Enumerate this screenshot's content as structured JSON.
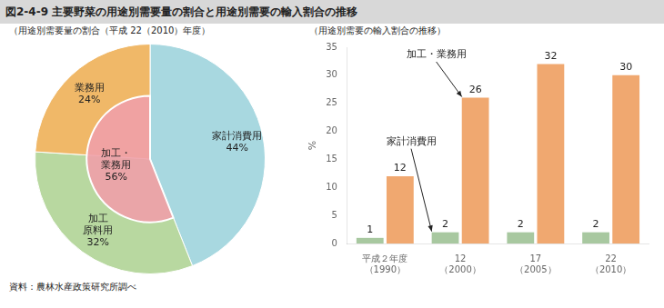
{
  "title": "図2-4-9   主要野菜の用途別需要量の割合と用途別需要の輸入割合の推移",
  "source": "資料：農林水産政策研究所調べ",
  "chart_data": [
    {
      "type": "pie",
      "subtitle": "（用途別需要量の割合（平成 22（2010）年度）",
      "categories": [
        "家計消費用",
        "加工\n原料用",
        "業務用"
      ],
      "values": [
        44,
        32,
        24
      ],
      "value_labels": [
        "44%",
        "32%",
        "24%"
      ],
      "colors": [
        "#a8d8e0",
        "#b8d8a0",
        "#f0b868"
      ],
      "data_labels": true,
      "annotations": [
        {
          "text": "加工・\n業務用",
          "value": 56,
          "value_label": "56%",
          "categories": [
            "加工\n原料用",
            "業務用"
          ],
          "color": "#f0a0a8"
        }
      ]
    },
    {
      "type": "bar",
      "subtitle": "（用途別需要の輸入割合の推移）",
      "categories": [
        "平成２年度\n（1990）",
        "12\n（2000）",
        "17\n（2005）",
        "22\n（2010）"
      ],
      "series": [
        {
          "color": "#a8c8a0",
          "values": [
            1,
            2,
            2,
            2
          ]
        },
        {
          "color": "#f0a870",
          "values": [
            12,
            26,
            32,
            30
          ]
        }
      ],
      "ylabel": "%",
      "ylim": [
        0,
        35
      ],
      "yticks": [
        0,
        5,
        10,
        15,
        20,
        25,
        30,
        35
      ],
      "grid": false,
      "data_labels": true,
      "annotations": [
        {
          "text": "家計消費用",
          "series": 0,
          "category": "12\n（2000）"
        },
        {
          "text": "加工・業務用",
          "series": 1,
          "category": "12\n（2000）"
        }
      ]
    }
  ]
}
